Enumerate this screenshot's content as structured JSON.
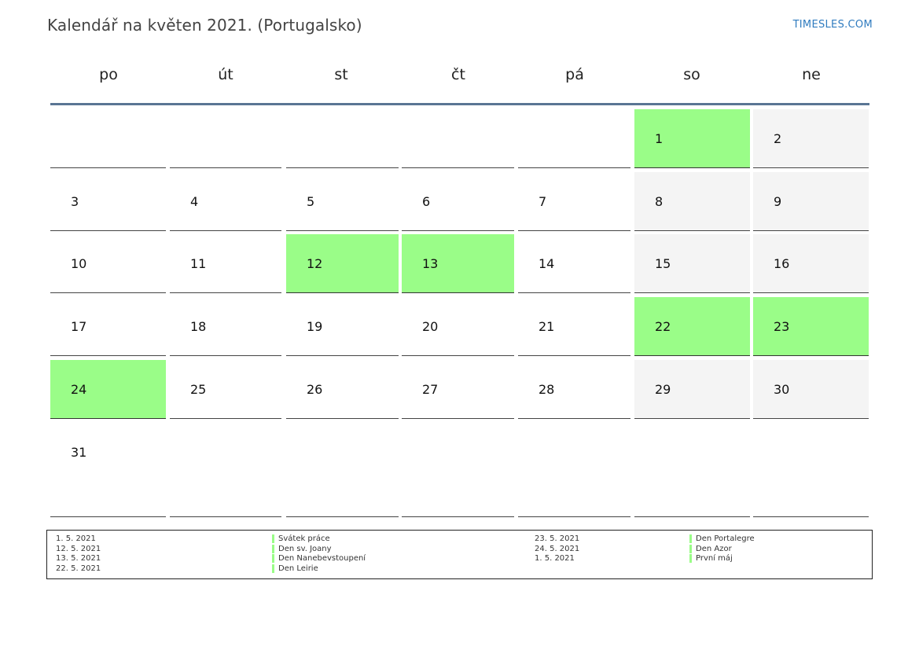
{
  "header": {
    "title": "Kalendář na květen 2021. (Portugalsko)",
    "site": "TIMESLES.COM"
  },
  "weekdays": [
    "po",
    "út",
    "st",
    "čt",
    "pá",
    "so",
    "ne"
  ],
  "colors": {
    "holiday": "#9afd88",
    "weekend": "#f4f4f4",
    "header_line": "#5a7594",
    "link": "#2f7bbf"
  },
  "weeks": [
    [
      null,
      null,
      null,
      null,
      null,
      {
        "day": "1",
        "holiday": true
      },
      {
        "day": "2"
      }
    ],
    [
      {
        "day": "3"
      },
      {
        "day": "4"
      },
      {
        "day": "5"
      },
      {
        "day": "6"
      },
      {
        "day": "7"
      },
      {
        "day": "8"
      },
      {
        "day": "9"
      }
    ],
    [
      {
        "day": "10"
      },
      {
        "day": "11"
      },
      {
        "day": "12",
        "holiday": true
      },
      {
        "day": "13",
        "holiday": true
      },
      {
        "day": "14"
      },
      {
        "day": "15"
      },
      {
        "day": "16"
      }
    ],
    [
      {
        "day": "17"
      },
      {
        "day": "18"
      },
      {
        "day": "19"
      },
      {
        "day": "20"
      },
      {
        "day": "21"
      },
      {
        "day": "22",
        "holiday": true
      },
      {
        "day": "23",
        "holiday": true
      }
    ],
    [
      {
        "day": "24",
        "holiday": true
      },
      {
        "day": "25"
      },
      {
        "day": "26"
      },
      {
        "day": "27"
      },
      {
        "day": "28"
      },
      {
        "day": "29"
      },
      {
        "day": "30"
      }
    ],
    [
      {
        "day": "31"
      },
      null,
      null,
      null,
      null,
      null,
      null
    ]
  ],
  "legend": {
    "left": [
      {
        "date": "1. 5. 2021",
        "name": "Svátek práce"
      },
      {
        "date": "12. 5. 2021",
        "name": "Den sv. Joany"
      },
      {
        "date": "13. 5. 2021",
        "name": "Den Nanebevstoupení"
      },
      {
        "date": "22. 5. 2021",
        "name": "Den Leirie"
      }
    ],
    "right": [
      {
        "date": "23. 5. 2021",
        "name": "Den Portalegre"
      },
      {
        "date": "24. 5. 2021",
        "name": "Den Azor"
      },
      {
        "date": "1. 5. 2021",
        "name": "První máj"
      }
    ]
  }
}
